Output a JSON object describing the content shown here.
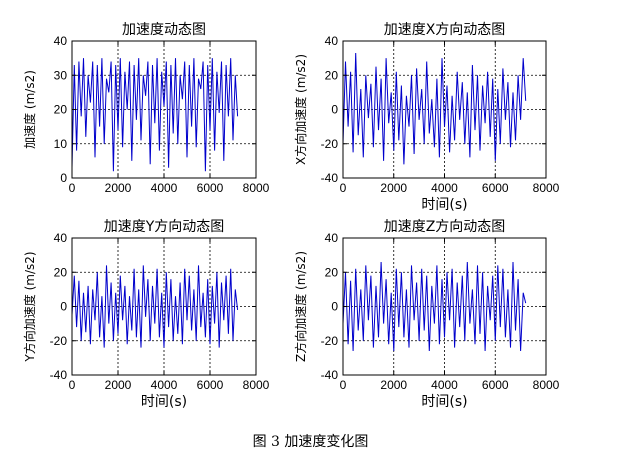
{
  "figure_caption": "图 3  加速度变化图",
  "series_color": "#0000cc",
  "chart_data": [
    {
      "type": "line",
      "title": "加速度动态图",
      "xlabel": "",
      "ylabel": "加速度 (m/s2)",
      "xlim": [
        0,
        8000
      ],
      "ylim": [
        0,
        40
      ],
      "xticks": [
        0,
        2000,
        4000,
        6000,
        8000
      ],
      "yticks": [
        0,
        10,
        20,
        30,
        40
      ],
      "grid": true,
      "series": [
        {
          "x": [
            0,
            100,
            200,
            300,
            400,
            500,
            600,
            700,
            800,
            900,
            1000,
            1100,
            1200,
            1300,
            1400,
            1500,
            1600,
            1700,
            1800,
            1900,
            2000,
            2100,
            2200,
            2300,
            2400,
            2500,
            2600,
            2700,
            2800,
            2900,
            3000,
            3100,
            3200,
            3300,
            3400,
            3500,
            3600,
            3700,
            3800,
            3900,
            4000,
            4100,
            4200,
            4300,
            4400,
            4500,
            4600,
            4700,
            4800,
            4900,
            5000,
            5100,
            5200,
            5300,
            5400,
            5500,
            5600,
            5700,
            5800,
            5900,
            6000,
            6100,
            6200,
            6300,
            6400,
            6500,
            6600,
            6700,
            6800,
            6900,
            7000,
            7100,
            7200
          ],
          "y": [
            3,
            33,
            8,
            34,
            18,
            35,
            12,
            30,
            22,
            34,
            6,
            33,
            15,
            35,
            10,
            29,
            25,
            34,
            2,
            33,
            14,
            35,
            9,
            31,
            20,
            34,
            5,
            33,
            17,
            35,
            11,
            30,
            24,
            34,
            4,
            33,
            16,
            35,
            8,
            31,
            21,
            34,
            3,
            33,
            13,
            35,
            10,
            30,
            23,
            34,
            6,
            33,
            15,
            35,
            9,
            29,
            26,
            34,
            2,
            33,
            14,
            35,
            8,
            31,
            19,
            34,
            5,
            33,
            18,
            35,
            11,
            30,
            18
          ]
        }
      ]
    },
    {
      "type": "line",
      "title": "加速度X方向动态图",
      "xlabel": "时间(s)",
      "ylabel": "X方向加速度 (m/s2)",
      "xlim": [
        0,
        8000
      ],
      "ylim": [
        -40,
        40
      ],
      "xticks": [
        0,
        2000,
        4000,
        6000,
        8000
      ],
      "yticks": [
        -40,
        -20,
        0,
        20,
        40
      ],
      "grid": true,
      "series": [
        {
          "x": [
            0,
            100,
            200,
            300,
            400,
            500,
            600,
            700,
            800,
            900,
            1000,
            1100,
            1200,
            1300,
            1400,
            1500,
            1600,
            1700,
            1800,
            1900,
            2000,
            2100,
            2200,
            2300,
            2400,
            2500,
            2600,
            2700,
            2800,
            2900,
            3000,
            3100,
            3200,
            3300,
            3400,
            3500,
            3600,
            3700,
            3800,
            3900,
            4000,
            4100,
            4200,
            4300,
            4400,
            4500,
            4600,
            4700,
            4800,
            4900,
            5000,
            5100,
            5200,
            5300,
            5400,
            5500,
            5600,
            5700,
            5800,
            5900,
            6000,
            6100,
            6200,
            6300,
            6400,
            6500,
            6600,
            6700,
            6800,
            6900,
            7000,
            7100,
            7200
          ],
          "y": [
            -20,
            28,
            -10,
            22,
            -25,
            33,
            -15,
            12,
            -28,
            20,
            -5,
            15,
            -22,
            25,
            -12,
            18,
            -30,
            30,
            -8,
            10,
            -24,
            22,
            -18,
            14,
            -32,
            8,
            -10,
            20,
            -26,
            24,
            -6,
            12,
            -20,
            28,
            -14,
            6,
            -22,
            18,
            -28,
            30,
            -10,
            14,
            -25,
            8,
            -18,
            22,
            -6,
            16,
            -20,
            10,
            -28,
            26,
            -12,
            20,
            -24,
            14,
            -8,
            22,
            -16,
            18,
            -30,
            12,
            -20,
            24,
            -6,
            16,
            -22,
            10,
            -18,
            20,
            -6,
            30,
            5
          ]
        }
      ]
    },
    {
      "type": "line",
      "title": "加速度Y方向动态图",
      "xlabel": "时间(s)",
      "ylabel": "Y方向加速度 (m/s2)",
      "xlim": [
        0,
        8000
      ],
      "ylim": [
        -40,
        40
      ],
      "xticks": [
        0,
        2000,
        4000,
        6000,
        8000
      ],
      "yticks": [
        -40,
        -20,
        0,
        20,
        40
      ],
      "grid": true,
      "series": [
        {
          "x": [
            0,
            100,
            200,
            300,
            400,
            500,
            600,
            700,
            800,
            900,
            1000,
            1100,
            1200,
            1300,
            1400,
            1500,
            1600,
            1700,
            1800,
            1900,
            2000,
            2100,
            2200,
            2300,
            2400,
            2500,
            2600,
            2700,
            2800,
            2900,
            3000,
            3100,
            3200,
            3300,
            3400,
            3500,
            3600,
            3700,
            3800,
            3900,
            4000,
            4100,
            4200,
            4300,
            4400,
            4500,
            4600,
            4700,
            4800,
            4900,
            5000,
            5100,
            5200,
            5300,
            5400,
            5500,
            5600,
            5700,
            5800,
            5900,
            6000,
            6100,
            6200,
            6300,
            6400,
            6500,
            6600,
            6700,
            6800,
            6900,
            7000,
            7100,
            7200
          ],
          "y": [
            -5,
            18,
            -12,
            15,
            -20,
            8,
            -15,
            12,
            -22,
            10,
            -8,
            20,
            -18,
            6,
            -24,
            24,
            -10,
            14,
            -20,
            8,
            -16,
            18,
            -8,
            12,
            -22,
            6,
            -14,
            22,
            -18,
            10,
            -24,
            24,
            -6,
            16,
            -20,
            12,
            -10,
            22,
            -18,
            8,
            -24,
            20,
            -12,
            16,
            -20,
            6,
            -16,
            14,
            -22,
            22,
            -8,
            18,
            -14,
            10,
            -20,
            24,
            -12,
            8,
            -18,
            16,
            -22,
            12,
            -10,
            20,
            -24,
            14,
            -8,
            18,
            -16,
            22,
            -20,
            10,
            -2
          ]
        }
      ]
    },
    {
      "type": "line",
      "title": "加速度Z方向动态图",
      "xlabel": "时间(s)",
      "ylabel": "Z方向加速度 (m/s2)",
      "xlim": [
        0,
        8000
      ],
      "ylim": [
        -40,
        40
      ],
      "xticks": [
        0,
        2000,
        4000,
        6000,
        8000
      ],
      "yticks": [
        -40,
        -20,
        0,
        20,
        40
      ],
      "grid": true,
      "series": [
        {
          "x": [
            0,
            100,
            200,
            300,
            400,
            500,
            600,
            700,
            800,
            900,
            1000,
            1100,
            1200,
            1300,
            1400,
            1500,
            1600,
            1700,
            1800,
            1900,
            2000,
            2100,
            2200,
            2300,
            2400,
            2500,
            2600,
            2700,
            2800,
            2900,
            3000,
            3100,
            3200,
            3300,
            3400,
            3500,
            3600,
            3700,
            3800,
            3900,
            4000,
            4100,
            4200,
            4300,
            4400,
            4500,
            4600,
            4700,
            4800,
            4900,
            5000,
            5100,
            5200,
            5300,
            5400,
            5500,
            5600,
            5700,
            5800,
            5900,
            6000,
            6100,
            6200,
            6300,
            6400,
            6500,
            6600,
            6700,
            6800,
            6900,
            7000,
            7100,
            7200
          ],
          "y": [
            -10,
            20,
            -22,
            15,
            -26,
            22,
            -14,
            10,
            -20,
            24,
            -8,
            18,
            -24,
            12,
            -18,
            26,
            -10,
            16,
            -22,
            8,
            -26,
            22,
            -12,
            20,
            -18,
            10,
            -24,
            24,
            -8,
            14,
            -20,
            22,
            -14,
            18,
            -26,
            12,
            -10,
            24,
            -22,
            16,
            -18,
            20,
            -8,
            22,
            -24,
            14,
            -12,
            18,
            -20,
            26,
            -10,
            10,
            -22,
            24,
            -16,
            20,
            -26,
            12,
            -8,
            18,
            -20,
            24,
            -12,
            22,
            -18,
            10,
            -24,
            26,
            -14,
            16,
            -26,
            8,
            2
          ]
        }
      ]
    }
  ]
}
